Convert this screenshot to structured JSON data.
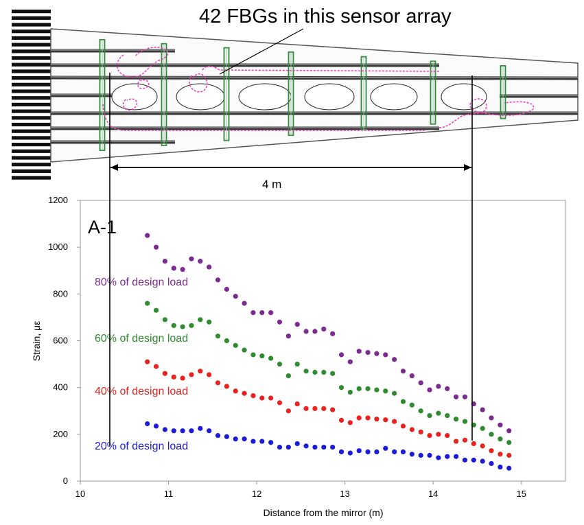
{
  "figure": {
    "annotation": "42 FBGs in this sensor array",
    "dimension_label": "4 m",
    "colors": {
      "fiber": "#ee3fb9",
      "rib": "#2f8a3c",
      "spar": "#3a3a3a",
      "outline": "#555555"
    }
  },
  "chart_data": {
    "type": "scatter",
    "panel_label": "A-1",
    "xlabel": "Distance from the mirror (m)",
    "ylabel": "Strain, με",
    "xlim": [
      10,
      15.5
    ],
    "ylim": [
      0,
      1200
    ],
    "x_ticks": [
      10,
      11,
      12,
      13,
      14,
      15
    ],
    "y_ticks": [
      0,
      200,
      400,
      600,
      800,
      1000,
      1200
    ],
    "grid": false,
    "x": [
      10.76,
      10.86,
      10.96,
      11.06,
      11.16,
      11.26,
      11.36,
      11.46,
      11.56,
      11.66,
      11.76,
      11.86,
      11.96,
      12.06,
      12.16,
      12.26,
      12.36,
      12.46,
      12.56,
      12.66,
      12.76,
      12.86,
      12.96,
      13.06,
      13.16,
      13.26,
      13.36,
      13.46,
      13.56,
      13.66,
      13.76,
      13.86,
      13.96,
      14.06,
      14.16,
      14.26,
      14.36,
      14.46,
      14.56,
      14.66,
      14.76,
      14.86
    ],
    "series": [
      {
        "name": "80% of design load",
        "color": "#7b2a8f",
        "values": [
          1050,
          1000,
          940,
          910,
          905,
          950,
          940,
          915,
          860,
          820,
          790,
          760,
          720,
          720,
          720,
          680,
          620,
          670,
          640,
          640,
          650,
          630,
          540,
          510,
          555,
          550,
          545,
          540,
          520,
          470,
          450,
          420,
          390,
          405,
          395,
          360,
          360,
          330,
          305,
          270,
          240,
          215
        ]
      },
      {
        "name": "60% of design load",
        "color": "#2e8b2e",
        "values": [
          760,
          730,
          690,
          665,
          660,
          665,
          690,
          680,
          620,
          600,
          580,
          560,
          540,
          535,
          525,
          500,
          450,
          500,
          470,
          465,
          465,
          460,
          400,
          380,
          395,
          395,
          390,
          385,
          375,
          340,
          325,
          300,
          280,
          290,
          280,
          265,
          255,
          240,
          225,
          200,
          180,
          165
        ]
      },
      {
        "name": "40% of design load",
        "color": "#e8231f",
        "values": [
          510,
          490,
          460,
          445,
          440,
          455,
          470,
          455,
          420,
          405,
          385,
          375,
          365,
          355,
          355,
          335,
          300,
          330,
          310,
          310,
          310,
          305,
          260,
          250,
          270,
          270,
          265,
          262,
          255,
          235,
          220,
          210,
          195,
          200,
          195,
          170,
          175,
          160,
          150,
          130,
          115,
          110
        ]
      },
      {
        "name": "20% of design load",
        "color": "#1c1cd8",
        "values": [
          245,
          235,
          220,
          215,
          215,
          215,
          225,
          215,
          195,
          190,
          180,
          180,
          170,
          170,
          165,
          145,
          145,
          160,
          150,
          145,
          145,
          145,
          125,
          120,
          130,
          125,
          125,
          140,
          125,
          125,
          115,
          110,
          110,
          100,
          105,
          105,
          90,
          90,
          85,
          75,
          60,
          55
        ]
      }
    ]
  }
}
